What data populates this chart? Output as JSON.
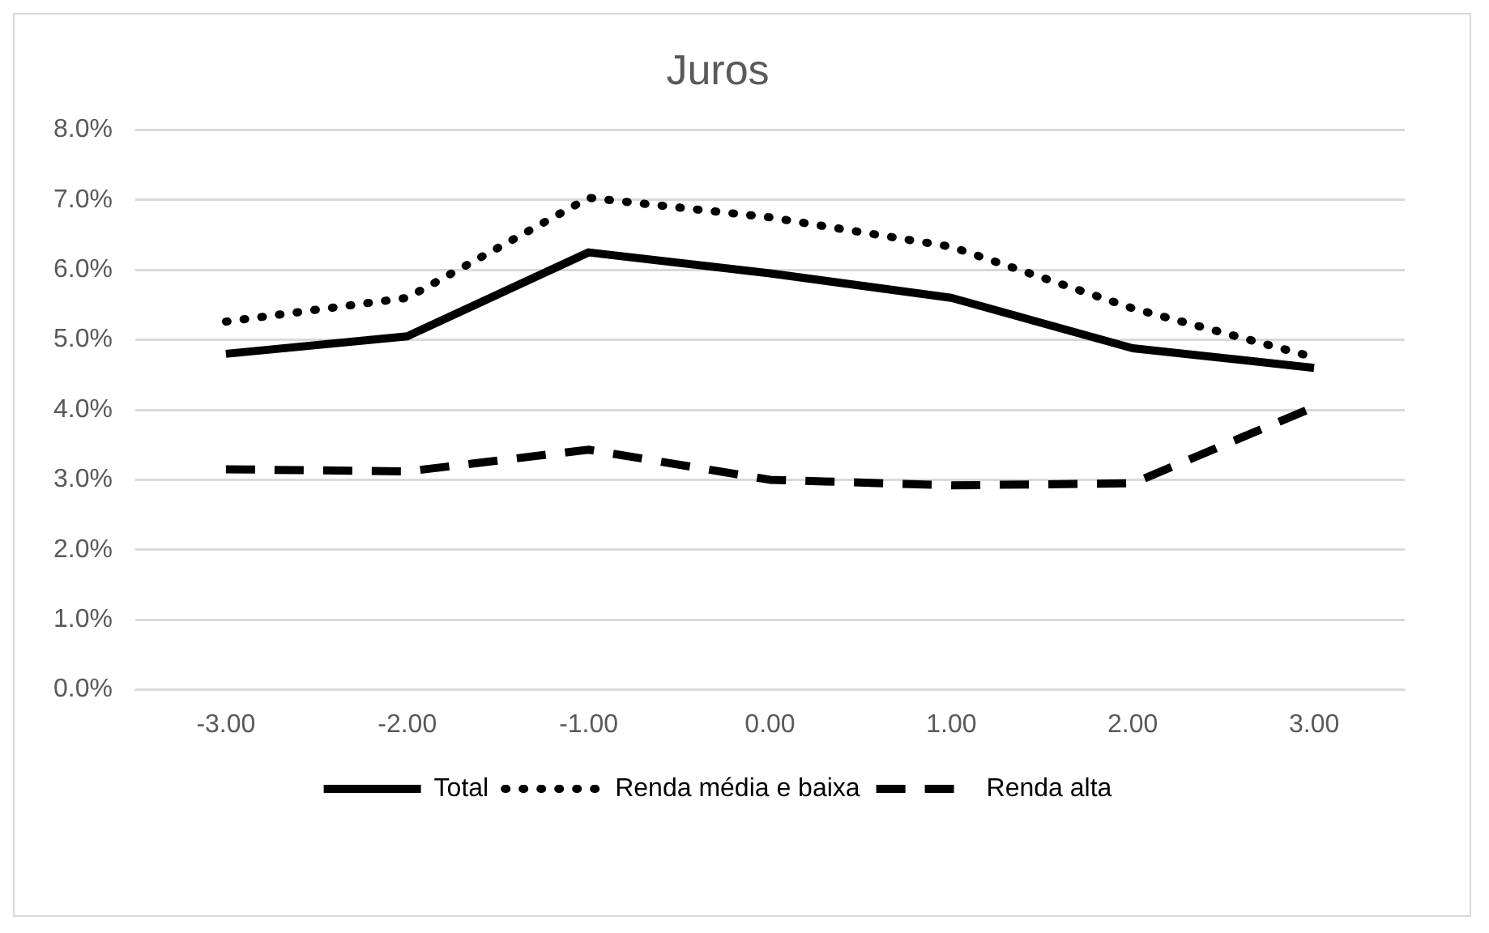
{
  "chart_data": {
    "type": "line",
    "title": "Juros",
    "categories": [
      "-3.00",
      "-2.00",
      "-1.00",
      "0.00",
      "1.00",
      "2.00",
      "3.00"
    ],
    "series": [
      {
        "name": "Total",
        "color": "#000000",
        "line_style": "solid",
        "values": [
          4.8,
          5.05,
          6.25,
          5.95,
          5.6,
          4.88,
          4.6
        ]
      },
      {
        "name": "Renda média e baixa",
        "color": "#000000",
        "line_style": "dotted",
        "values": [
          5.26,
          5.6,
          7.03,
          6.75,
          6.33,
          5.45,
          4.75
        ]
      },
      {
        "name": "Renda alta",
        "color": "#000000",
        "line_style": "dashed",
        "values": [
          3.15,
          3.12,
          3.43,
          3.0,
          2.92,
          2.95,
          4.04
        ]
      }
    ],
    "ylim": [
      0,
      8
    ],
    "yticks": [
      {
        "value": 0,
        "label": "0.0%"
      },
      {
        "value": 1,
        "label": "1.0%"
      },
      {
        "value": 2,
        "label": "2.0%"
      },
      {
        "value": 3,
        "label": "3.0%"
      },
      {
        "value": 4,
        "label": "4.0%"
      },
      {
        "value": 5,
        "label": "5.0%"
      },
      {
        "value": 6,
        "label": "6.0%"
      },
      {
        "value": 7,
        "label": "7.0%"
      },
      {
        "value": 8,
        "label": "8.0%"
      }
    ],
    "grid": "y",
    "legend": "bottom",
    "marker": "none"
  }
}
